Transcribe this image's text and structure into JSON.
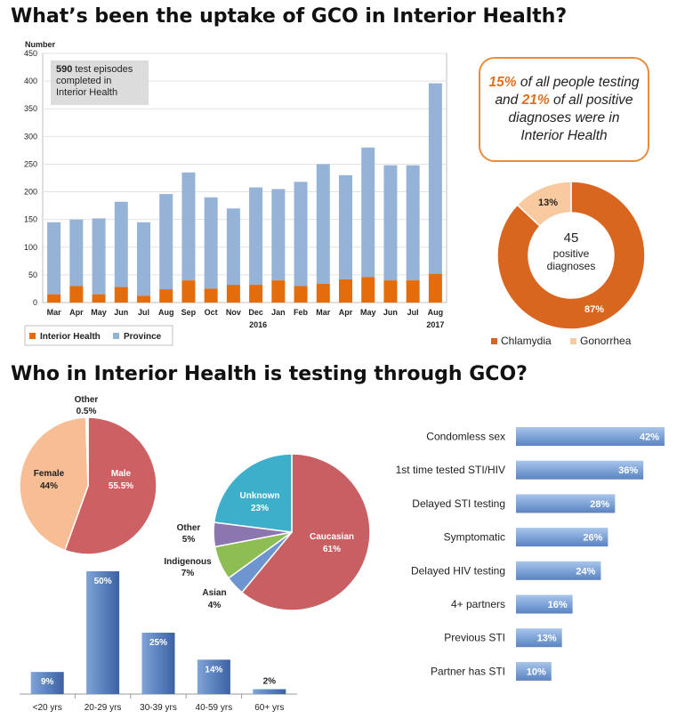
{
  "headings": {
    "uptake": "What’s been the uptake of GCO in Interior Health?",
    "who": "Who in Interior Health is testing through GCO?"
  },
  "callout": {
    "pct_people": "15%",
    "text_a": " of all people testing and ",
    "pct_diag": "21%",
    "text_b": " of all positive diagnoses were in Interior Health"
  },
  "test_box": {
    "count": "590",
    "text": " test episodes completed in Interior Health"
  },
  "colors": {
    "interior": "#E46C0A",
    "province": "#95B3D7",
    "chlamydia": "#D9661F",
    "gonorrhea": "#F9C9A0",
    "male": "#CD6062",
    "female": "#F7BE95",
    "unknown": "#3DAFCB",
    "caucasian": "#C85F62",
    "asian": "#6E95CF",
    "indigenous": "#8DBD53",
    "other": "#8C76B0",
    "callout_border": "#E88C3C"
  },
  "chart_data": [
    {
      "type": "bar",
      "title": "",
      "ylabel": "Number",
      "ylim": [
        0,
        450
      ],
      "yticks": [
        0,
        50,
        100,
        150,
        200,
        250,
        300,
        350,
        400,
        450
      ],
      "categories": [
        "Mar",
        "Apr",
        "May",
        "Jun",
        "Jul",
        "Aug",
        "Sep",
        "Oct",
        "Nov",
        "Dec",
        "Jan",
        "Feb",
        "Mar",
        "Apr",
        "May",
        "Jun",
        "Jul",
        "Aug"
      ],
      "year_labels": [
        "2016",
        "2017"
      ],
      "series": [
        {
          "name": "Interior Health",
          "values": [
            15,
            30,
            15,
            28,
            12,
            24,
            40,
            25,
            32,
            32,
            40,
            30,
            34,
            42,
            46,
            40,
            40,
            52
          ]
        },
        {
          "name": "Province",
          "values": [
            145,
            150,
            152,
            182,
            145,
            196,
            235,
            190,
            170,
            208,
            205,
            218,
            250,
            230,
            280,
            248,
            248,
            396
          ]
        }
      ],
      "legend": "bottom-left"
    },
    {
      "type": "pie",
      "center_text": [
        "45",
        "positive",
        "diagnoses"
      ],
      "slices": [
        {
          "name": "Chlamydia",
          "value": 87,
          "label": "87%"
        },
        {
          "name": "Gonorrhea",
          "value": 13,
          "label": "13%"
        }
      ],
      "legend": "bottom"
    },
    {
      "type": "pie",
      "slices": [
        {
          "name": "Male",
          "value": 55.5,
          "label": "55.5%"
        },
        {
          "name": "Female",
          "value": 44,
          "label": "44%"
        },
        {
          "name": "Other",
          "value": 0.5,
          "label": "0.5%"
        }
      ]
    },
    {
      "type": "pie",
      "slices": [
        {
          "name": "Caucasian",
          "value": 61,
          "label": "61%"
        },
        {
          "name": "Asian",
          "value": 4,
          "label": "4%"
        },
        {
          "name": "Indigenous",
          "value": 7,
          "label": "7%"
        },
        {
          "name": "Other",
          "value": 5,
          "label": "5%"
        },
        {
          "name": "Unknown",
          "value": 23,
          "label": "23%"
        }
      ]
    },
    {
      "type": "bar",
      "categories": [
        "<20 yrs",
        "20-29 yrs",
        "30-39 yrs",
        "40-59 yrs",
        "60+ yrs"
      ],
      "values": [
        9,
        50,
        25,
        14,
        2
      ],
      "labels": [
        "9%",
        "50%",
        "25%",
        "14%",
        "2%"
      ]
    },
    {
      "type": "bar",
      "orientation": "horizontal",
      "categories": [
        "Condomless sex",
        "1st time tested STI/HIV",
        "Delayed STI testing",
        "Symptomatic",
        "Delayed HIV testing",
        "4+ partners",
        "Previous STI",
        "Partner has STI"
      ],
      "values": [
        42,
        36,
        28,
        26,
        24,
        16,
        13,
        10
      ],
      "labels": [
        "42%",
        "36%",
        "28%",
        "26%",
        "24%",
        "16%",
        "13%",
        "10%"
      ]
    }
  ]
}
